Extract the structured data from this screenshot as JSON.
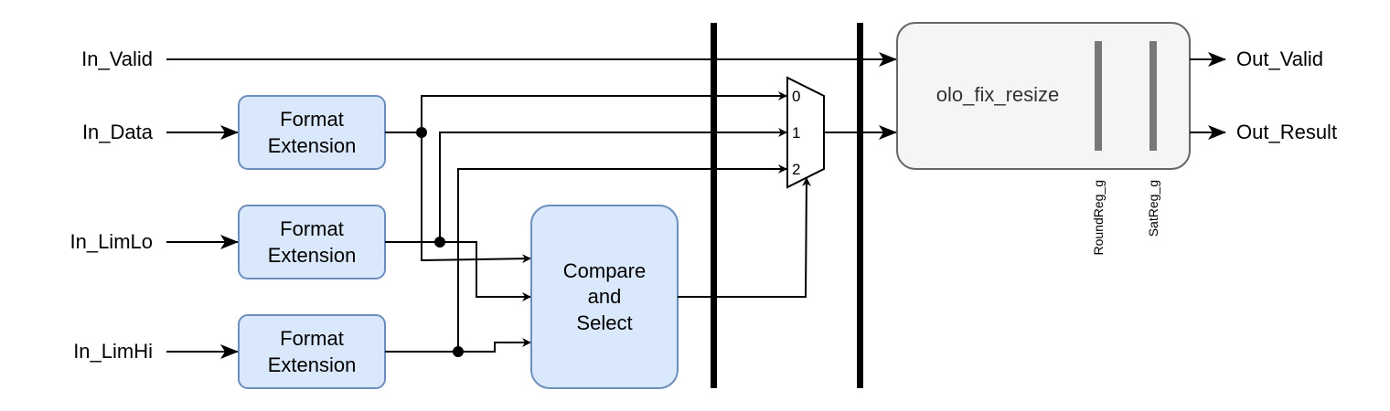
{
  "inputs": {
    "valid": "In_Valid",
    "data": "In_Data",
    "limlo": "In_LimLo",
    "limhi": "In_LimHi"
  },
  "outputs": {
    "valid": "Out_Valid",
    "result": "Out_Result"
  },
  "format_ext": {
    "line1": "Format",
    "line2": "Extension"
  },
  "compare": {
    "line1": "Compare",
    "line2": "and",
    "line3": "Select"
  },
  "mux": {
    "in0": "0",
    "in1": "1",
    "in2": "2"
  },
  "resize": {
    "title": "olo_fix_resize",
    "reg1": "RoundReg_g",
    "reg2": "SatReg_g"
  },
  "colors": {
    "block_fill": "#dae8fc",
    "block_stroke": "#6c8ebf",
    "entity_fill": "#f5f5f5",
    "entity_stroke": "#666666"
  }
}
